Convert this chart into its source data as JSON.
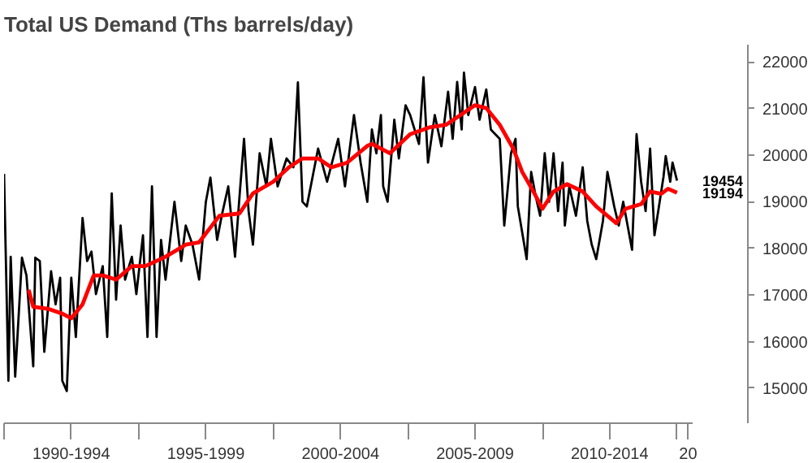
{
  "chart_data": {
    "type": "line",
    "title": "Total US Demand (Ths barrels/day)",
    "xlim": [
      "1990-01",
      "2015-08"
    ],
    "ylim": [
      14250,
      22370
    ],
    "xticks": [
      {
        "value": "1990-01",
        "label": null
      },
      {
        "value": "1992-07",
        "label": "1990-1994"
      },
      {
        "value": "1995-01",
        "label": null
      },
      {
        "value": "1997-07",
        "label": "1995-1999"
      },
      {
        "value": "2000-01",
        "label": null
      },
      {
        "value": "2002-07",
        "label": "2000-2004"
      },
      {
        "value": "2005-01",
        "label": null
      },
      {
        "value": "2007-07",
        "label": "2005-2009"
      },
      {
        "value": "2010-01",
        "label": null
      },
      {
        "value": "2012-07",
        "label": "2010-2014"
      },
      {
        "value": "2015-01",
        "label": null
      },
      {
        "value": "2015-06",
        "label": "20"
      }
    ],
    "yticks": [
      15000,
      16000,
      17000,
      18000,
      19000,
      20000,
      21000,
      22000
    ],
    "grid": false,
    "marker": "none",
    "line_style": "solid",
    "series": [
      {
        "color": "#000000",
        "x": [
          "1990-01",
          "1990-03",
          "1990-04",
          "1990-06",
          "1990-09",
          "1990-11",
          "1991-02",
          "1991-03",
          "1991-05",
          "1991-07",
          "1991-10",
          "1991-12",
          "1992-02",
          "1992-03",
          "1992-05",
          "1992-07",
          "1992-09",
          "1992-12",
          "1993-02",
          "1993-04",
          "1993-06",
          "1993-09",
          "1993-11",
          "1994-01",
          "1994-03",
          "1994-05",
          "1994-07",
          "1994-10",
          "1994-12",
          "1995-03",
          "1995-05",
          "1995-07",
          "1995-09",
          "1995-11",
          "1996-01",
          "1996-05",
          "1996-08",
          "1996-10",
          "1997-01",
          "1997-04",
          "1997-07",
          "1997-09",
          "1997-12",
          "1998-02",
          "1998-05",
          "1998-08",
          "1998-10",
          "1998-12",
          "1999-02",
          "1999-04",
          "1999-07",
          "1999-10",
          "1999-12",
          "2000-03",
          "2000-07",
          "2000-10",
          "2000-12",
          "2001-02",
          "2001-04",
          "2001-09",
          "2002-01",
          "2002-06",
          "2002-09",
          "2003-01",
          "2003-04",
          "2003-07",
          "2003-09",
          "2003-11",
          "2004-01",
          "2004-02",
          "2004-04",
          "2004-07",
          "2004-09",
          "2004-12",
          "2005-02",
          "2005-06",
          "2005-08",
          "2005-10",
          "2006-01",
          "2006-04",
          "2006-07",
          "2006-09",
          "2006-11",
          "2007-01",
          "2007-02",
          "2007-04",
          "2007-07",
          "2007-09",
          "2007-12",
          "2008-02",
          "2008-06",
          "2008-08",
          "2008-11",
          "2009-01",
          "2009-02",
          "2009-06",
          "2009-08",
          "2009-10",
          "2009-12",
          "2010-02",
          "2010-04",
          "2010-06",
          "2010-08",
          "2010-10",
          "2010-11",
          "2011-01",
          "2011-04",
          "2011-07",
          "2011-09",
          "2011-11",
          "2012-01",
          "2012-04",
          "2012-06",
          "2012-09",
          "2012-11",
          "2013-01",
          "2013-05",
          "2013-07",
          "2013-09",
          "2013-11",
          "2014-01",
          "2014-03",
          "2014-05",
          "2014-07",
          "2014-08",
          "2014-10",
          "2014-11",
          "2015-01"
        ],
        "values": [
          19600,
          15160,
          17820,
          15250,
          17800,
          17420,
          15470,
          17800,
          17730,
          15780,
          17510,
          16800,
          17370,
          15160,
          14940,
          17370,
          16100,
          18650,
          17730,
          17930,
          17020,
          17620,
          16100,
          19180,
          16900,
          18490,
          17330,
          17820,
          17020,
          18280,
          16100,
          19330,
          16100,
          18180,
          17330,
          19000,
          17730,
          18490,
          18080,
          17330,
          19000,
          19520,
          18180,
          18700,
          19330,
          17820,
          19120,
          20350,
          18800,
          18080,
          20040,
          19330,
          20350,
          19330,
          19930,
          19740,
          21560,
          19000,
          18900,
          20140,
          19430,
          20350,
          19330,
          20860,
          19840,
          19000,
          20550,
          20040,
          20860,
          19330,
          19000,
          20760,
          19930,
          21070,
          20860,
          20240,
          21670,
          19840,
          20860,
          20190,
          21360,
          20350,
          21570,
          20550,
          21770,
          20860,
          21460,
          20760,
          21410,
          20550,
          20350,
          18490,
          20040,
          20350,
          18900,
          17770,
          19640,
          19120,
          18700,
          20040,
          19000,
          20040,
          18800,
          19840,
          18490,
          19330,
          18700,
          19740,
          18590,
          18080,
          17770,
          18590,
          19640,
          18900,
          18490,
          19000,
          17970,
          20450,
          19430,
          18800,
          20140,
          18280,
          18900,
          19530,
          19980,
          19430,
          19840,
          19454
        ],
        "value_labels": [
          null,
          null,
          null,
          null,
          null,
          null,
          null,
          null,
          null,
          null,
          null,
          null,
          null,
          null,
          null,
          null,
          null,
          null,
          null,
          null,
          null,
          null,
          null,
          null,
          null,
          null,
          null,
          null,
          null,
          null,
          null,
          null,
          null,
          null,
          null,
          null,
          null,
          null,
          null,
          null,
          null,
          null,
          null,
          null,
          null,
          null,
          null,
          null,
          null,
          null,
          null,
          null,
          null,
          null,
          null,
          null,
          null,
          null,
          null,
          null,
          null,
          null,
          null,
          null,
          null,
          null,
          null,
          null,
          null,
          null,
          null,
          null,
          null,
          null,
          null,
          null,
          null,
          null,
          null,
          null,
          null,
          null,
          null,
          null,
          null,
          null,
          null,
          null,
          null,
          null,
          null,
          null,
          null,
          null,
          null,
          null,
          null,
          null,
          null,
          null,
          null,
          null,
          null,
          null,
          null,
          null,
          null,
          null,
          null,
          null,
          null,
          null,
          null,
          null,
          null,
          null,
          null,
          null,
          null,
          null,
          null,
          null,
          null,
          null,
          null,
          null,
          null,
          "19454"
        ]
      },
      {
        "color": "#ff0000",
        "x": [
          "1990-12",
          "1991-02",
          "1991-09",
          "1992-03",
          "1992-07",
          "1992-12",
          "1993-05",
          "1993-09",
          "1994-03",
          "1994-10",
          "1995-04",
          "1996-01",
          "1996-10",
          "1997-04",
          "1998-01",
          "1998-10",
          "1999-04",
          "2000-01",
          "2000-08",
          "2001-02",
          "2001-09",
          "2002-03",
          "2002-10",
          "2003-07",
          "2003-09",
          "2004-05",
          "2005-02",
          "2005-11",
          "2006-06",
          "2007-02",
          "2007-07",
          "2007-12",
          "2008-06",
          "2008-12",
          "2009-04",
          "2009-09",
          "2010-01",
          "2010-06",
          "2010-12",
          "2011-07",
          "2012-01",
          "2012-06",
          "2012-10",
          "2013-02",
          "2013-09",
          "2014-01",
          "2014-06",
          "2014-09",
          "2015-01"
        ],
        "values": [
          17110,
          16750,
          16700,
          16600,
          16500,
          16800,
          17420,
          17420,
          17330,
          17620,
          17620,
          17820,
          18080,
          18130,
          18700,
          18750,
          19180,
          19430,
          19740,
          19930,
          19930,
          19740,
          19840,
          20200,
          20240,
          20040,
          20450,
          20600,
          20650,
          20910,
          21070,
          21010,
          20650,
          20140,
          19640,
          19220,
          18850,
          19220,
          19380,
          19220,
          18900,
          18700,
          18540,
          18850,
          18950,
          19220,
          19170,
          19280,
          19194
        ],
        "value_labels": [
          null,
          null,
          null,
          null,
          null,
          null,
          null,
          null,
          null,
          null,
          null,
          null,
          null,
          null,
          null,
          null,
          null,
          null,
          null,
          null,
          null,
          null,
          null,
          null,
          null,
          null,
          null,
          null,
          null,
          null,
          null,
          null,
          null,
          null,
          null,
          null,
          null,
          null,
          null,
          null,
          null,
          null,
          null,
          null,
          null,
          null,
          null,
          null,
          "19194"
        ]
      }
    ]
  }
}
